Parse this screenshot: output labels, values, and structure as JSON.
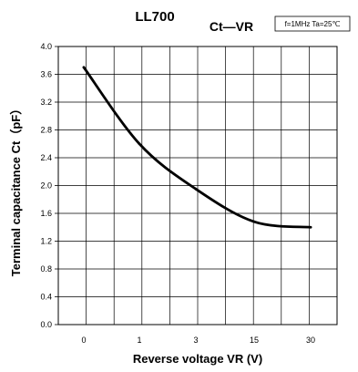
{
  "chart_data": {
    "type": "line",
    "title": "LL700",
    "subtitle": "Ct—VR",
    "conditions": "f=1MHz  Ta=25℃",
    "xlabel": "Reverse voltage VR (V)",
    "ylabel": "Terminal capacitance Ct（pF）",
    "x_tick_labels": [
      "0",
      "1",
      "3",
      "15",
      "30"
    ],
    "y_tick_labels": [
      "0.0",
      "0.4",
      "0.8",
      "1.2",
      "1.6",
      "2.0",
      "2.4",
      "2.8",
      "3.2",
      "3.6",
      "4.0"
    ],
    "ylim": [
      0,
      4.0
    ],
    "grid": true,
    "series": [
      {
        "values": [
          {
            "x": "0",
            "y": 3.7
          },
          {
            "x": "1",
            "y": 2.6
          },
          {
            "x": "3",
            "y": 1.95
          },
          {
            "x": "15",
            "y": 1.48
          },
          {
            "x": "30",
            "y": 1.4
          }
        ]
      }
    ]
  }
}
